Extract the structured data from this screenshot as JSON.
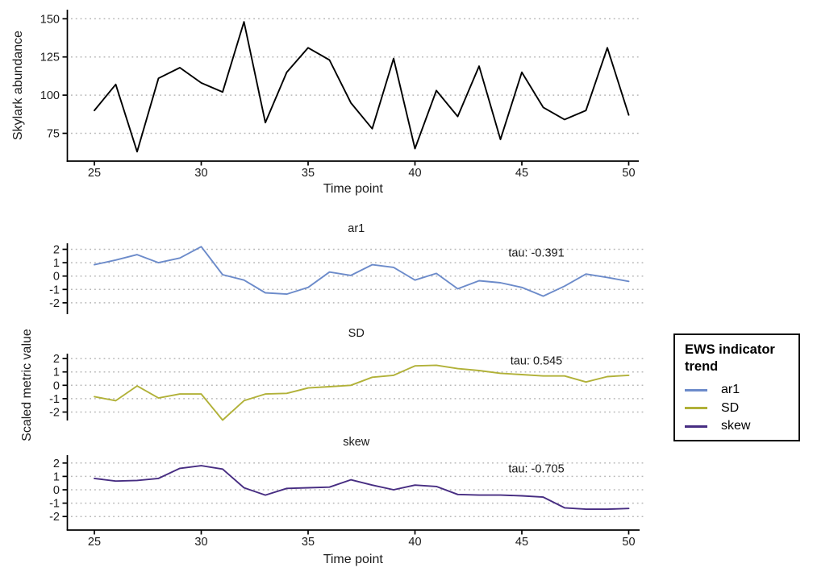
{
  "chart_data": [
    {
      "type": "line",
      "title": "",
      "xlabel": "Time point",
      "ylabel": "Skylark abundance",
      "x": [
        25,
        26,
        27,
        28,
        29,
        30,
        31,
        32,
        33,
        34,
        35,
        36,
        37,
        38,
        39,
        40,
        41,
        42,
        43,
        44,
        45,
        46,
        47,
        48,
        49,
        50
      ],
      "xticks": [
        25,
        30,
        35,
        40,
        45,
        50
      ],
      "yticks": [
        150,
        125,
        100,
        75
      ],
      "ylim": [
        57,
        157
      ],
      "grid": "dotted-horizontal",
      "series": [
        {
          "name": "Skylark abundance",
          "color": "#000000",
          "values": [
            90,
            107,
            63,
            111,
            118,
            108,
            102,
            148,
            82,
            115,
            131,
            123,
            95,
            78,
            124,
            65,
            103,
            86,
            119,
            71,
            115,
            92,
            84,
            90,
            131,
            87
          ]
        }
      ]
    },
    {
      "type": "line",
      "title": "",
      "xlabel": "Time point",
      "ylabel": "Scaled metric value",
      "x": [
        25,
        26,
        27,
        28,
        29,
        30,
        31,
        32,
        33,
        34,
        35,
        36,
        37,
        38,
        39,
        40,
        41,
        42,
        43,
        44,
        45,
        46,
        47,
        48,
        49,
        50
      ],
      "xticks": [
        25,
        30,
        35,
        40,
        45,
        50
      ],
      "yticks": [
        2,
        1,
        0,
        -1,
        -2
      ],
      "ylim": [
        -2.8,
        2.5
      ],
      "grid": "dotted-horizontal",
      "legend_position": "right",
      "facets": [
        {
          "name": "ar1",
          "annotation": "tau: -0.391",
          "color": "#6c8bca",
          "values": [
            0.85,
            1.2,
            1.6,
            1.0,
            1.35,
            2.2,
            0.1,
            -0.3,
            -1.25,
            -1.35,
            -0.85,
            0.3,
            0.05,
            0.85,
            0.65,
            -0.3,
            0.2,
            -0.95,
            -0.35,
            -0.5,
            -0.85,
            -1.5,
            -0.75,
            0.15,
            -0.1,
            -0.4
          ]
        },
        {
          "name": "SD",
          "annotation": "tau: 0.545",
          "color": "#b1b138",
          "values": [
            -0.85,
            -1.15,
            -0.05,
            -0.95,
            -0.65,
            -0.65,
            -2.6,
            -1.15,
            -0.65,
            -0.6,
            -0.2,
            -0.1,
            0.0,
            0.6,
            0.75,
            1.45,
            1.5,
            1.25,
            1.1,
            0.9,
            0.8,
            0.7,
            0.7,
            0.25,
            0.65,
            0.75
          ]
        },
        {
          "name": "skew",
          "annotation": "tau: -0.705",
          "color": "#472d82",
          "values": [
            0.85,
            0.65,
            0.7,
            0.85,
            1.6,
            1.8,
            1.55,
            0.15,
            -0.4,
            0.1,
            0.15,
            0.2,
            0.75,
            0.35,
            0.0,
            0.35,
            0.25,
            -0.35,
            -0.4,
            -0.4,
            -0.45,
            -0.55,
            -1.35,
            -1.45,
            -1.45,
            -1.4
          ]
        }
      ]
    }
  ],
  "legend": {
    "title": "EWS indicator trend",
    "items": [
      {
        "label": "ar1",
        "color": "#6c8bca"
      },
      {
        "label": "SD",
        "color": "#b1b138"
      },
      {
        "label": "skew",
        "color": "#472d82"
      }
    ]
  }
}
